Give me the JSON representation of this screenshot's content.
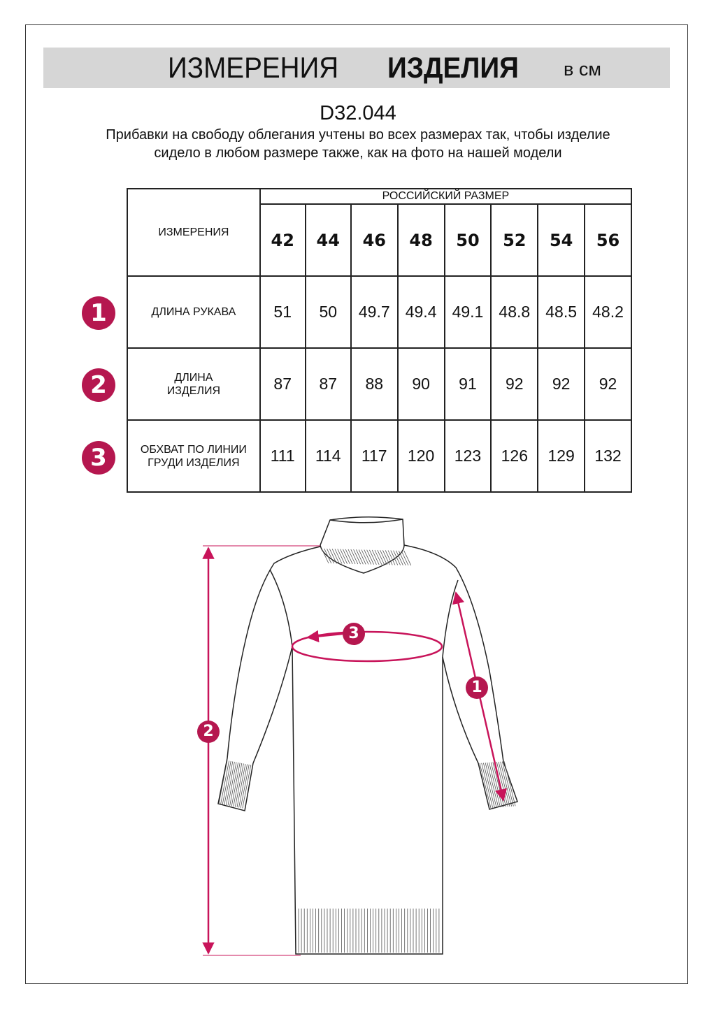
{
  "header": {
    "title_regular": "ИЗМЕРЕНИЯ",
    "title_bold": "ИЗДЕЛИЯ",
    "unit": "в см"
  },
  "product_code": "D32.044",
  "note": "Прибавки на свободу облегания учтены во всех размерах так, чтобы изделие сидело в любом размере также, как на фото на нашей модели",
  "table": {
    "corner_label": "ИЗМЕРЕНИЯ",
    "group_label": "РОССИЙСКИЙ РАЗМЕР",
    "sizes": [
      "42",
      "44",
      "46",
      "48",
      "50",
      "52",
      "54",
      "56"
    ],
    "rows": [
      {
        "badge": "1",
        "label": "ДЛИНА РУКАВА",
        "values": [
          "51",
          "50",
          "49.7",
          "49.4",
          "49.1",
          "48.8",
          "48.5",
          "48.2"
        ]
      },
      {
        "badge": "2",
        "label": "ДЛИНА ИЗДЕЛИЯ",
        "values": [
          "87",
          "87",
          "88",
          "90",
          "91",
          "92",
          "92",
          "92"
        ]
      },
      {
        "badge": "3",
        "label": "ОБХВАТ ПО ЛИНИИ ГРУДИ ИЗДЕЛИЯ",
        "values": [
          "111",
          "114",
          "117",
          "120",
          "123",
          "126",
          "129",
          "132"
        ]
      }
    ]
  },
  "diagram": {
    "markers": [
      "1",
      "2",
      "3"
    ]
  },
  "colors": {
    "accent": "#b5174f",
    "banner": "#d6d6d6"
  }
}
